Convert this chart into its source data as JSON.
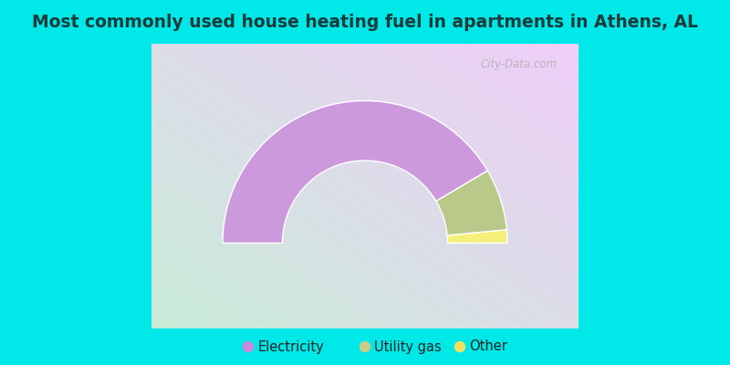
{
  "title": "Most commonly used house heating fuel in apartments in Athens, AL",
  "categories": [
    "Electricity",
    "Utility gas",
    "Other"
  ],
  "values": [
    83.0,
    14.0,
    3.0
  ],
  "colors": [
    "#cc99dd",
    "#b8c98a",
    "#f5f07a"
  ],
  "legend_colors": [
    "#cc88dd",
    "#c8cc88",
    "#f0e060"
  ],
  "background_cyan": "#00e8e8",
  "title_color": "#1a3a3a",
  "title_fontsize": 13.5,
  "watermark": "City-Data.com",
  "outer_r": 1.0,
  "inner_r": 0.58
}
